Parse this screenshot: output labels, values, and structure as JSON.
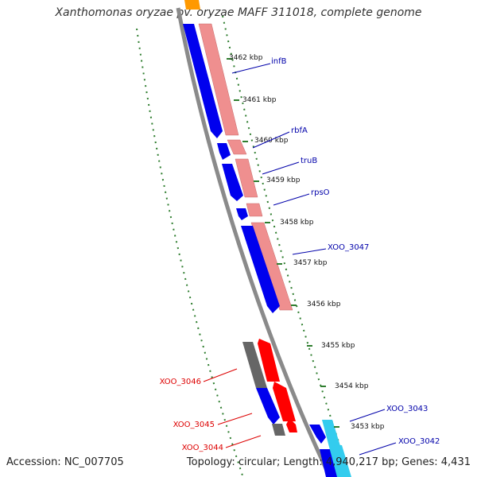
{
  "title": "Xanthomonas oryzae pv. oryzae MAFF 311018, complete genome",
  "footer": {
    "accession": "Accession: NC_007705",
    "topology": "Topology: circular; Length: 4,940,217 bp; Genes: 4,431"
  },
  "colors": {
    "backbone": "#8a8a8a",
    "forward_cds": "#0000ee",
    "reverse_cds": "#ff0000",
    "trna_rrna": "#666666",
    "conservation": "#ef8f8f",
    "forward_other": "#33ccee",
    "gc_ticks": "#2e7d2e",
    "orange_feature": "#ff9900",
    "label_blue": "#0000aa",
    "label_red": "#dd0000"
  },
  "ruler_labels": [
    "3462 kbp",
    "3461 kbp",
    "3460 kbp",
    "3459 kbp",
    "3458 kbp",
    "3457 kbp",
    "3456 kbp",
    "3455 kbp",
    "3454 kbp",
    "3453 kbp"
  ],
  "gene_labels": {
    "infB": "infB",
    "rbfA": "rbfA",
    "truB": "truB",
    "rpsO": "rpsO",
    "XOO_3047": "XOO_3047",
    "XOO_3046": "XOO_3046",
    "XOO_3045": "XOO_3045",
    "XOO_3044": "XOO_3044",
    "XOO_3043": "XOO_3043",
    "XOO_3042": "XOO_3042"
  }
}
